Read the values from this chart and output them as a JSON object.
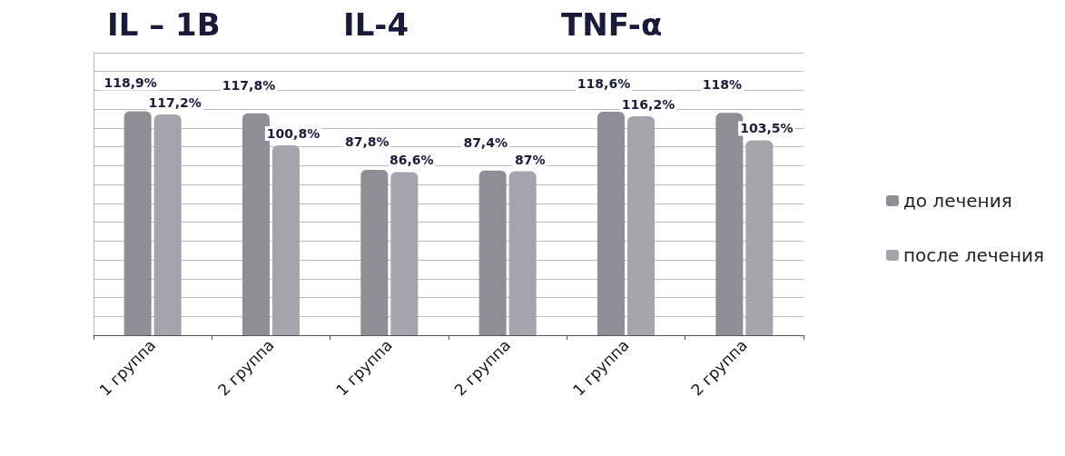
{
  "chart_data": {
    "type": "bar",
    "categories": [
      "1 группа",
      "2 группа",
      "1 группа",
      "2 группа",
      "1 группа",
      "2 группа"
    ],
    "series": [
      {
        "name": "до лечения",
        "color": "#8e8e96",
        "values": [
          118.9,
          117.8,
          87.8,
          87.4,
          118.6,
          118
        ],
        "value_labels": [
          "118,9%",
          "117,8%",
          "87,8%",
          "87,4%",
          "118,6%",
          "118%"
        ]
      },
      {
        "name": "после лечения",
        "color": "#a4a4ac",
        "values": [
          117.2,
          100.8,
          86.6,
          87,
          116.2,
          103.5
        ],
        "value_labels": [
          "117,2%",
          "100,8%",
          "86,6%",
          "87%",
          "116,2%",
          "103,5%"
        ]
      }
    ],
    "annotations": [
      "IL – 1B",
      "IL-4",
      "TNF-α"
    ],
    "grid": "y",
    "legend": "right"
  }
}
